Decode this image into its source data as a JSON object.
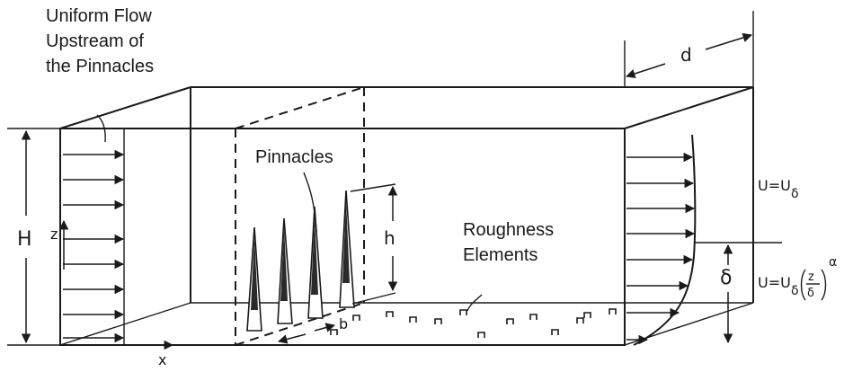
{
  "labels": {
    "uniform_flow": [
      "Uniform Flow",
      "Upstream of",
      "the Pinnacles"
    ],
    "pinnacles": "Pinnacles",
    "roughness": [
      "Roughness",
      "Elements"
    ],
    "H": "H",
    "z": "z",
    "x": "x",
    "d": "d",
    "h": "h",
    "b": "b",
    "delta": "δ",
    "u_top_prefix": "U=U",
    "u_top_sub": "δ",
    "u_law_prefix": "U=U",
    "u_law_sub": "δ",
    "u_law_frac_num": "z",
    "u_law_frac_den": "δ",
    "u_law_exp": "α"
  }
}
